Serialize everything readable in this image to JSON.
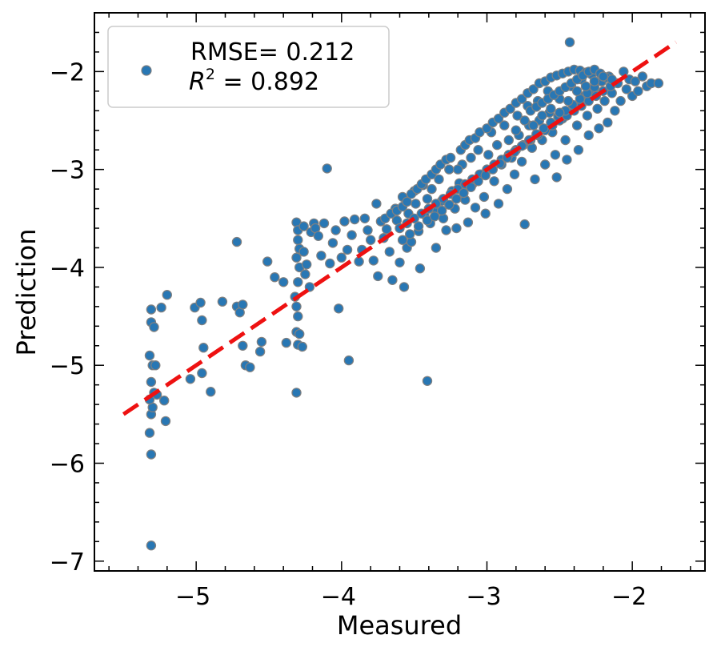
{
  "chart_data": {
    "type": "scatter",
    "xlabel": "Measured",
    "ylabel": "Prediction",
    "xlim": [
      -5.7,
      -1.5
    ],
    "ylim": [
      -7.1,
      -1.4
    ],
    "x_ticks": [
      -5,
      -4,
      -3,
      -2
    ],
    "y_ticks": [
      -7,
      -6,
      -5,
      -4,
      -3,
      -2
    ],
    "x_tick_labels": [
      "−5",
      "−4",
      "−3",
      "−2"
    ],
    "y_tick_labels": [
      "−7",
      "−6",
      "−5",
      "−4",
      "−3",
      "−2"
    ],
    "grid": false,
    "legend": {
      "position": "top-left",
      "rmse_text": "RMSE= 0.212",
      "r2_symbol": "R",
      "r2_exp": "2",
      "r2_value": " = 0.892"
    },
    "reference_line": {
      "x": [
        -5.5,
        -1.7
      ],
      "y": [
        -5.5,
        -1.7
      ],
      "color": "#ee1111",
      "style": "dashed"
    },
    "marker_fill": "#2877b4",
    "marker_edge": "#808080",
    "points": [
      [
        -5.31,
        -6.84
      ],
      [
        -5.31,
        -5.91
      ],
      [
        -5.32,
        -5.69
      ],
      [
        -5.31,
        -5.5
      ],
      [
        -5.3,
        -5.43
      ],
      [
        -5.32,
        -5.35
      ],
      [
        -5.29,
        -5.28
      ],
      [
        -5.31,
        -5.17
      ],
      [
        -5.32,
        -4.9
      ],
      [
        -5.3,
        -5.0
      ],
      [
        -5.28,
        -5.0
      ],
      [
        -5.31,
        -4.56
      ],
      [
        -5.29,
        -4.61
      ],
      [
        -5.31,
        -4.43
      ],
      [
        -5.24,
        -4.41
      ],
      [
        -5.27,
        -5.3
      ],
      [
        -5.22,
        -5.36
      ],
      [
        -5.21,
        -5.57
      ],
      [
        -5.2,
        -4.28
      ],
      [
        -5.04,
        -5.14
      ],
      [
        -5.01,
        -4.41
      ],
      [
        -4.97,
        -4.36
      ],
      [
        -4.96,
        -4.54
      ],
      [
        -4.95,
        -4.82
      ],
      [
        -4.96,
        -5.08
      ],
      [
        -4.9,
        -5.27
      ],
      [
        -4.82,
        -4.35
      ],
      [
        -4.72,
        -4.4
      ],
      [
        -4.7,
        -4.46
      ],
      [
        -4.68,
        -4.38
      ],
      [
        -4.72,
        -3.74
      ],
      [
        -4.68,
        -4.8
      ],
      [
        -4.66,
        -5.0
      ],
      [
        -4.63,
        -5.02
      ],
      [
        -4.56,
        -4.86
      ],
      [
        -4.55,
        -4.76
      ],
      [
        -4.51,
        -3.94
      ],
      [
        -4.46,
        -4.1
      ],
      [
        -4.4,
        -4.15
      ],
      [
        -4.38,
        -4.77
      ],
      [
        -4.32,
        -4.3
      ],
      [
        -4.31,
        -4.4
      ],
      [
        -4.3,
        -4.15
      ],
      [
        -4.31,
        -3.54
      ],
      [
        -4.3,
        -3.62
      ],
      [
        -4.3,
        -3.72
      ],
      [
        -4.29,
        -3.81
      ],
      [
        -4.31,
        -3.9
      ],
      [
        -4.29,
        -4.0
      ],
      [
        -4.3,
        -4.5
      ],
      [
        -4.31,
        -4.66
      ],
      [
        -4.29,
        -4.68
      ],
      [
        -4.3,
        -4.79
      ],
      [
        -4.31,
        -5.28
      ],
      [
        -4.26,
        -3.58
      ],
      [
        -4.26,
        -3.84
      ],
      [
        -4.24,
        -3.97
      ],
      [
        -4.25,
        -4.07
      ],
      [
        -4.22,
        -4.2
      ],
      [
        -4.21,
        -3.64
      ],
      [
        -4.27,
        -4.81
      ],
      [
        -4.19,
        -3.55
      ],
      [
        -4.18,
        -3.6
      ],
      [
        -4.16,
        -3.68
      ],
      [
        -4.14,
        -3.88
      ],
      [
        -4.12,
        -3.55
      ],
      [
        -4.1,
        -2.99
      ],
      [
        -4.08,
        -3.96
      ],
      [
        -4.06,
        -3.75
      ],
      [
        -4.04,
        -3.62
      ],
      [
        -4.02,
        -4.42
      ],
      [
        -4.0,
        -3.9
      ],
      [
        -3.98,
        -3.53
      ],
      [
        -3.96,
        -3.82
      ],
      [
        -3.95,
        -4.95
      ],
      [
        -3.93,
        -3.67
      ],
      [
        -3.91,
        -3.51
      ],
      [
        -3.88,
        -3.94
      ],
      [
        -3.86,
        -3.82
      ],
      [
        -3.84,
        -3.5
      ],
      [
        -3.82,
        -3.62
      ],
      [
        -3.8,
        -3.72
      ],
      [
        -3.78,
        -3.93
      ],
      [
        -3.76,
        -3.35
      ],
      [
        -3.75,
        -4.09
      ],
      [
        -3.73,
        -3.53
      ],
      [
        -3.71,
        -3.7
      ],
      [
        -3.69,
        -3.61
      ],
      [
        -3.67,
        -3.84
      ],
      [
        -3.65,
        -4.13
      ],
      [
        -3.63,
        -3.4
      ],
      [
        -3.62,
        -3.52
      ],
      [
        -3.6,
        -3.95
      ],
      [
        -3.58,
        -3.28
      ],
      [
        -3.57,
        -4.2
      ],
      [
        -3.55,
        -3.8
      ],
      [
        -3.54,
        -3.45
      ],
      [
        -3.52,
        -3.74
      ],
      [
        -3.5,
        -3.22
      ],
      [
        -3.49,
        -3.35
      ],
      [
        -3.47,
        -3.63
      ],
      [
        -3.46,
        -4.01
      ],
      [
        -3.44,
        -3.16
      ],
      [
        -3.43,
        -3.46
      ],
      [
        -3.41,
        -3.3
      ],
      [
        -3.41,
        -5.16
      ],
      [
        -3.39,
        -3.55
      ],
      [
        -3.38,
        -3.2
      ],
      [
        -3.36,
        -3.4
      ],
      [
        -3.35,
        -3.8
      ],
      [
        -3.33,
        -3.1
      ],
      [
        -3.31,
        -3.32
      ],
      [
        -3.3,
        -3.5
      ],
      [
        -3.28,
        -3.62
      ],
      [
        -3.26,
        -3.0
      ],
      [
        -3.24,
        -3.22
      ],
      [
        -3.22,
        -3.4
      ],
      [
        -3.21,
        -3.6
      ],
      [
        -3.19,
        -3.14
      ],
      [
        -3.17,
        -2.95
      ],
      [
        -3.15,
        -3.31
      ],
      [
        -3.13,
        -3.54
      ],
      [
        -3.11,
        -2.88
      ],
      [
        -3.1,
        -3.15
      ],
      [
        -3.08,
        -3.39
      ],
      [
        -3.06,
        -2.8
      ],
      [
        -3.04,
        -3.05
      ],
      [
        -3.02,
        -3.28
      ],
      [
        -3.01,
        -3.45
      ],
      [
        -2.99,
        -2.85
      ],
      [
        -2.97,
        -2.62
      ],
      [
        -2.95,
        -3.12
      ],
      [
        -2.93,
        -2.75
      ],
      [
        -2.92,
        -3.35
      ],
      [
        -2.9,
        -2.95
      ],
      [
        -2.88,
        -2.55
      ],
      [
        -2.86,
        -3.2
      ],
      [
        -2.85,
        -2.7
      ],
      [
        -2.83,
        -2.88
      ],
      [
        -2.81,
        -3.05
      ],
      [
        -2.79,
        -2.45
      ],
      [
        -2.78,
        -2.65
      ],
      [
        -2.76,
        -2.92
      ],
      [
        -2.74,
        -3.56
      ],
      [
        -2.72,
        -2.35
      ],
      [
        -2.71,
        -2.55
      ],
      [
        -2.69,
        -2.78
      ],
      [
        -2.67,
        -3.1
      ],
      [
        -2.65,
        -2.3
      ],
      [
        -2.64,
        -2.5
      ],
      [
        -2.62,
        -2.7
      ],
      [
        -2.6,
        -2.95
      ],
      [
        -2.58,
        -2.2
      ],
      [
        -2.57,
        -2.42
      ],
      [
        -2.55,
        -2.62
      ],
      [
        -2.53,
        -2.85
      ],
      [
        -2.52,
        -3.08
      ],
      [
        -2.5,
        -2.28
      ],
      [
        -2.48,
        -2.48
      ],
      [
        -2.46,
        -2.7
      ],
      [
        -2.45,
        -2.9
      ],
      [
        -2.43,
        -1.7
      ],
      [
        -2.42,
        -2.15
      ],
      [
        -2.4,
        -2.35
      ],
      [
        -2.38,
        -2.55
      ],
      [
        -2.37,
        -2.8
      ],
      [
        -2.35,
        -2.08
      ],
      [
        -2.33,
        -2.25
      ],
      [
        -2.31,
        -2.45
      ],
      [
        -2.3,
        -2.65
      ],
      [
        -2.28,
        -2.0
      ],
      [
        -2.26,
        -2.18
      ],
      [
        -2.24,
        -2.38
      ],
      [
        -2.23,
        -2.58
      ],
      [
        -2.21,
        -2.1
      ],
      [
        -2.19,
        -2.3
      ],
      [
        -2.17,
        -2.52
      ],
      [
        -2.16,
        -2.05
      ],
      [
        -2.14,
        -2.22
      ],
      [
        -2.12,
        -2.4
      ],
      [
        -2.1,
        -2.12
      ],
      [
        -2.08,
        -2.3
      ],
      [
        -2.06,
        -2.0
      ],
      [
        -2.04,
        -2.18
      ],
      [
        -2.02,
        -2.08
      ],
      [
        -2.0,
        -2.25
      ],
      [
        -1.98,
        -2.1
      ],
      [
        -1.96,
        -2.2
      ],
      [
        -1.93,
        -2.05
      ],
      [
        -1.9,
        -2.15
      ],
      [
        -1.87,
        -2.12
      ],
      [
        -1.82,
        -2.12
      ],
      [
        -3.7,
        -3.5
      ],
      [
        -3.66,
        -3.45
      ],
      [
        -3.62,
        -3.42
      ],
      [
        -3.58,
        -3.38
      ],
      [
        -3.55,
        -3.33
      ],
      [
        -3.52,
        -3.25
      ],
      [
        -3.48,
        -3.2
      ],
      [
        -3.45,
        -3.15
      ],
      [
        -3.42,
        -3.1
      ],
      [
        -3.38,
        -3.05
      ],
      [
        -3.35,
        -3.0
      ],
      [
        -3.32,
        -2.95
      ],
      [
        -3.28,
        -2.9
      ],
      [
        -3.25,
        -2.88
      ],
      [
        -3.2,
        -3.0
      ],
      [
        -3.18,
        -2.8
      ],
      [
        -3.15,
        -2.75
      ],
      [
        -3.12,
        -2.7
      ],
      [
        -3.08,
        -2.68
      ],
      [
        -3.05,
        -2.62
      ],
      [
        -3.0,
        -2.58
      ],
      [
        -2.96,
        -2.52
      ],
      [
        -2.92,
        -2.48
      ],
      [
        -2.88,
        -2.42
      ],
      [
        -2.84,
        -2.38
      ],
      [
        -2.8,
        -2.32
      ],
      [
        -2.76,
        -2.28
      ],
      [
        -2.72,
        -2.22
      ],
      [
        -2.68,
        -2.18
      ],
      [
        -2.64,
        -2.12
      ],
      [
        -2.6,
        -2.1
      ],
      [
        -2.56,
        -2.06
      ],
      [
        -2.52,
        -2.04
      ],
      [
        -2.48,
        -2.02
      ],
      [
        -2.44,
        -2.0
      ],
      [
        -2.4,
        -1.98
      ],
      [
        -2.36,
        -1.99
      ],
      [
        -2.32,
        -2.01
      ],
      [
        -2.28,
        -2.03
      ],
      [
        -3.6,
        -3.6
      ],
      [
        -3.55,
        -3.55
      ],
      [
        -3.5,
        -3.5
      ],
      [
        -3.45,
        -3.45
      ],
      [
        -3.4,
        -3.4
      ],
      [
        -3.35,
        -3.35
      ],
      [
        -3.3,
        -3.3
      ],
      [
        -3.25,
        -3.25
      ],
      [
        -3.2,
        -3.2
      ],
      [
        -3.15,
        -3.15
      ],
      [
        -3.1,
        -3.1
      ],
      [
        -3.05,
        -3.05
      ],
      [
        -3.0,
        -3.0
      ],
      [
        -2.95,
        -2.95
      ],
      [
        -2.9,
        -2.9
      ],
      [
        -2.85,
        -2.85
      ],
      [
        -2.8,
        -2.8
      ],
      [
        -2.75,
        -2.75
      ],
      [
        -2.7,
        -2.7
      ],
      [
        -2.65,
        -2.65
      ],
      [
        -2.6,
        -2.6
      ],
      [
        -2.55,
        -2.55
      ],
      [
        -2.5,
        -2.5
      ],
      [
        -2.45,
        -2.45
      ],
      [
        -2.4,
        -2.4
      ],
      [
        -2.35,
        -2.35
      ],
      [
        -2.3,
        -2.3
      ],
      [
        -2.25,
        -2.25
      ],
      [
        -2.2,
        -2.2
      ],
      [
        -2.15,
        -2.15
      ],
      [
        -3.58,
        -3.72
      ],
      [
        -3.53,
        -3.66
      ],
      [
        -3.47,
        -3.58
      ],
      [
        -3.41,
        -3.52
      ],
      [
        -3.36,
        -3.48
      ],
      [
        -3.31,
        -3.42
      ],
      [
        -3.26,
        -3.36
      ],
      [
        -3.21,
        -3.3
      ],
      [
        -3.16,
        -3.24
      ],
      [
        -3.11,
        -3.18
      ],
      [
        -3.06,
        -3.12
      ],
      [
        -3.01,
        -3.06
      ],
      [
        -2.96,
        -3.0
      ],
      [
        -2.91,
        -2.94
      ],
      [
        -2.86,
        -2.88
      ],
      [
        -2.81,
        -2.82
      ],
      [
        -2.76,
        -2.76
      ],
      [
        -2.71,
        -2.7
      ],
      [
        -2.66,
        -2.64
      ],
      [
        -2.61,
        -2.58
      ],
      [
        -2.56,
        -2.52
      ],
      [
        -2.51,
        -2.46
      ],
      [
        -2.46,
        -2.4
      ],
      [
        -2.41,
        -2.34
      ],
      [
        -2.36,
        -2.28
      ],
      [
        -2.31,
        -2.22
      ],
      [
        -2.26,
        -2.16
      ],
      [
        -2.21,
        -2.1
      ],
      [
        -2.7,
        -2.4
      ],
      [
        -2.66,
        -2.36
      ],
      [
        -2.62,
        -2.32
      ],
      [
        -2.58,
        -2.28
      ],
      [
        -2.54,
        -2.24
      ],
      [
        -2.5,
        -2.2
      ],
      [
        -2.46,
        -2.16
      ],
      [
        -2.42,
        -2.12
      ],
      [
        -2.38,
        -2.08
      ],
      [
        -2.34,
        -2.04
      ],
      [
        -2.3,
        -2.0
      ],
      [
        -2.26,
        -1.98
      ],
      [
        -2.22,
        -2.02
      ],
      [
        -2.18,
        -2.06
      ],
      [
        -2.14,
        -2.08
      ],
      [
        -2.8,
        -2.6
      ],
      [
        -2.74,
        -2.5
      ],
      [
        -2.68,
        -2.55
      ],
      [
        -2.62,
        -2.45
      ],
      [
        -2.56,
        -2.38
      ],
      [
        -2.5,
        -2.42
      ],
      [
        -2.44,
        -2.3
      ],
      [
        -2.38,
        -2.2
      ],
      [
        -2.32,
        -2.15
      ],
      [
        -2.26,
        -2.1
      ],
      [
        -2.2,
        -2.05
      ]
    ]
  }
}
